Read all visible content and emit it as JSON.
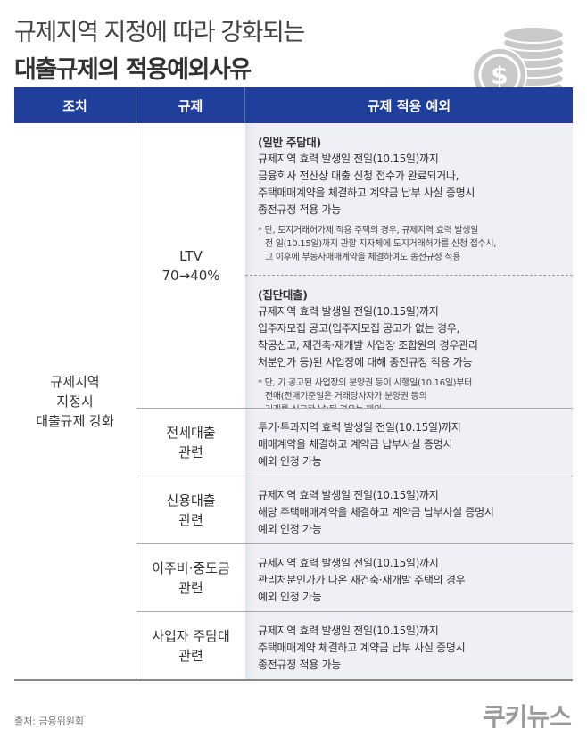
{
  "title": {
    "line1": "규제지역 지정에 따라 강화되는",
    "line2": "대출규제의 적용예외사유"
  },
  "header": [
    "조치",
    "규제",
    "규제 적용 예외"
  ],
  "measure": [
    "규제지역",
    "지정시",
    "대출규제 강화"
  ],
  "rows": [
    {
      "reg": [
        "LTV",
        "70→40%"
      ],
      "blocks": [
        {
          "heading": "(일반 주담대)",
          "lines": [
            "규제지역 효력 발생일 전일(10.15일)까지",
            "금융회사 전산상 대출 신청 접수가 완료되거나,",
            "주택매매계약을 체결하고 계약금 납부 사실 증명시",
            "종전규정 적용 가능"
          ],
          "note": [
            "* 단, 토지거래허가제 적용 주택의 경우, 규제지역 효력 발생일",
            "전 일(10.15일)까지 관할 지자체에 도지거래허가를 신청 접수시,",
            "그 이후에 부동사매매계약을 체결하여도 종전규정 적용"
          ]
        },
        {
          "heading": "(집단대출)",
          "lines": [
            "규제지역 효력 발생일 전일(10.15일)까지",
            "입주자모집 공고(입주자모집 공고가 없는 경우,",
            "착공신고, 재건축·재개발 사업장 조합원의 경우관리",
            "처분인가 등)된 사업장에 대해 종전규정 적용 가능"
          ],
          "note": [
            "* 단, 기 공고된 사업장의 분양권 등이 시행일(10.16일)부터",
            "전매(전매기준일은 거래당사자가 분양권 등의",
            "거래를 신고한 날)된 경우는 제외"
          ]
        }
      ]
    },
    {
      "reg": [
        "전세대출",
        "관련"
      ],
      "lines": [
        "투기·투과지역 효력 발생일 전일(10.15일)까지",
        "매매계약을 체결하고 계약금 납부사실 증명시",
        "예외 인정 가능"
      ]
    },
    {
      "reg": [
        "신용대출",
        "관련"
      ],
      "lines": [
        "규제지역 효력 발생일 전일(10.15일)까지",
        "해당 주택매매계약을 체결하고 계약금 납부사실 증명시",
        "예외 인정 가능"
      ]
    },
    {
      "reg": [
        "이주비·중도금",
        "관련"
      ],
      "lines": [
        "규제지역 효력 발생일 전일(10.15일)까지",
        "관리처분인가가 나온 재건축·재개발 주택의 경우",
        "예외 인정 가능"
      ]
    },
    {
      "reg": [
        "사업자 주담대",
        "관련"
      ],
      "lines": [
        "규제지역 효력 발생일 전일(10.15일)까지",
        "주택매매계약 체결하고 계약금 납부 사실 증명시",
        "종전규정 적용 가능"
      ]
    }
  ],
  "source": "출처: 금융위원회",
  "logo": "쿠키뉴스",
  "colors": {
    "header": "#1f3f9b",
    "cell": "#eef0f6"
  },
  "icon": "coin-stack-dollar-icon"
}
